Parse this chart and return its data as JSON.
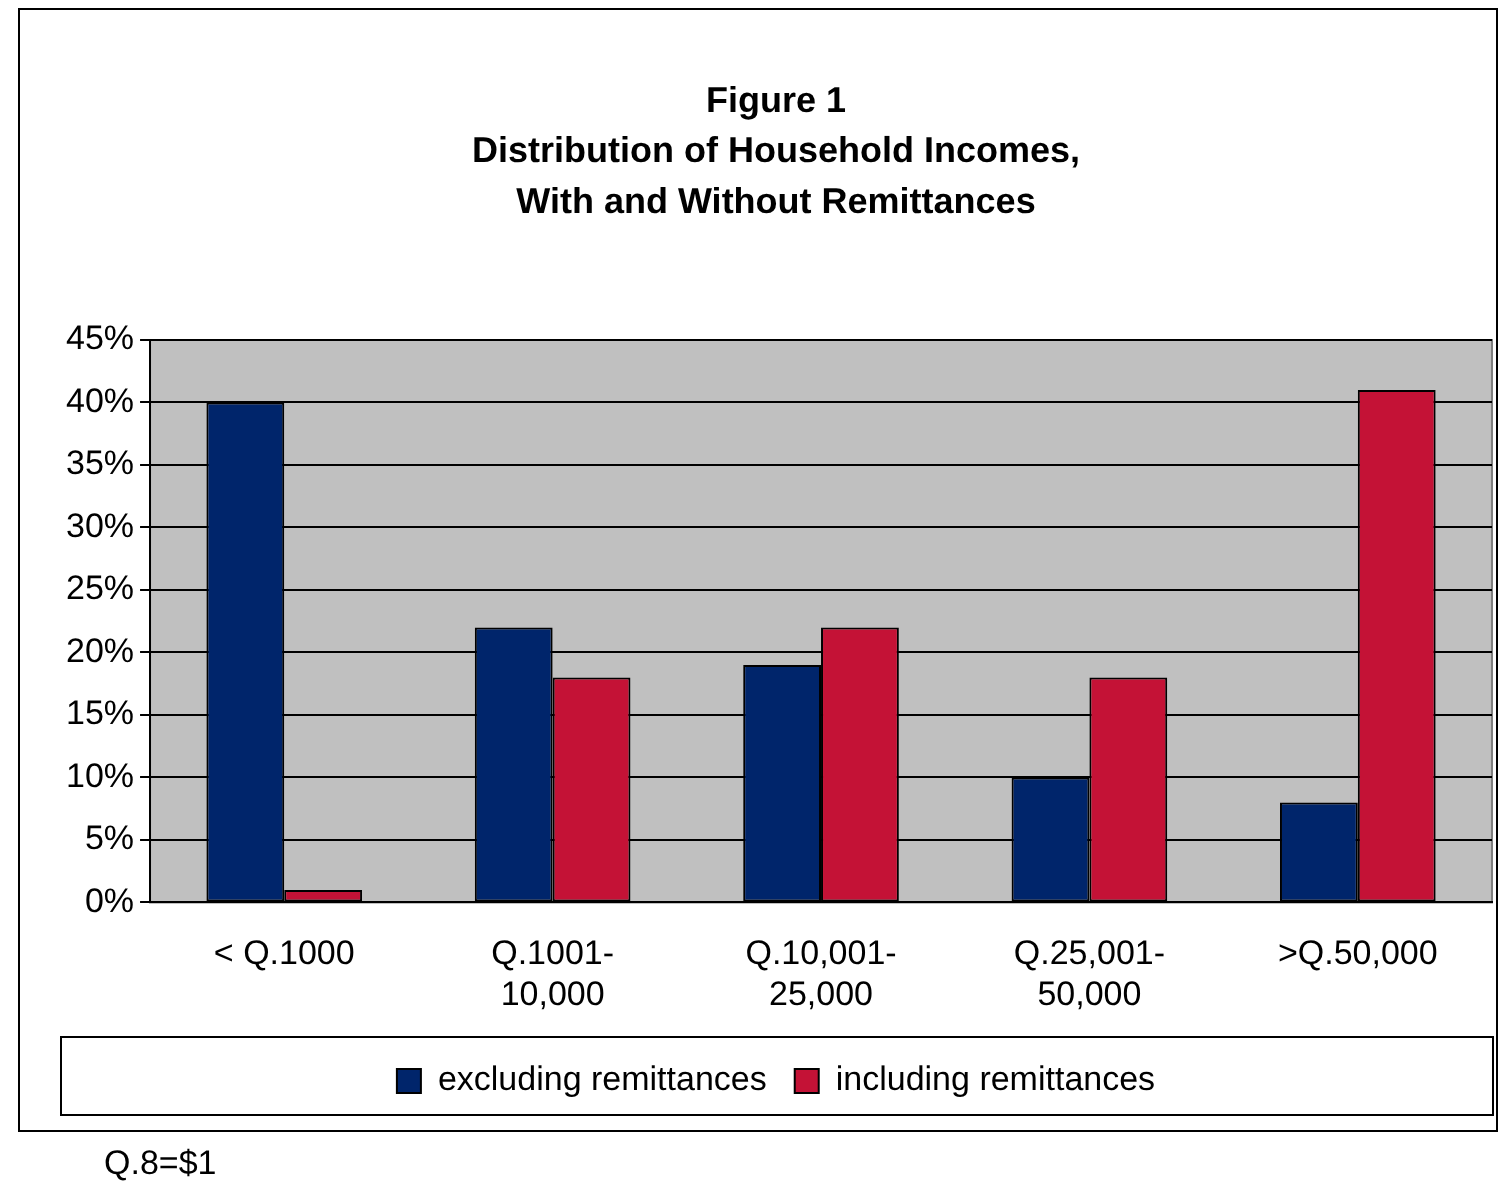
{
  "chart_data": {
    "type": "bar",
    "title": "Figure 1",
    "subtitle": "Distribution of Household Incomes, With and Without Remittances",
    "categories": [
      "< Q.1000",
      "Q.1001-10,000",
      "Q.10,001-25,000",
      "Q.25,001-50,000",
      ">Q.50,000"
    ],
    "series": [
      {
        "name": "excluding remittances",
        "color": "#00256b",
        "values": [
          40,
          22,
          19,
          10,
          8
        ]
      },
      {
        "name": "including remittances",
        "color": "#c41236",
        "values": [
          1,
          18,
          22,
          18,
          41
        ]
      }
    ],
    "ylim": [
      0,
      45
    ],
    "yticks": [
      {
        "value": 0,
        "label": "0%"
      },
      {
        "value": 5,
        "label": "5%"
      },
      {
        "value": 10,
        "label": "10%"
      },
      {
        "value": 15,
        "label": "15%"
      },
      {
        "value": 20,
        "label": "20%"
      },
      {
        "value": 25,
        "label": "25%"
      },
      {
        "value": 30,
        "label": "30%"
      },
      {
        "value": 35,
        "label": "35%"
      },
      {
        "value": 40,
        "label": "40%"
      },
      {
        "value": 45,
        "label": "45%"
      }
    ],
    "grid": "y",
    "legend": "bottom",
    "annotations": [
      "Q.8=$1"
    ]
  }
}
